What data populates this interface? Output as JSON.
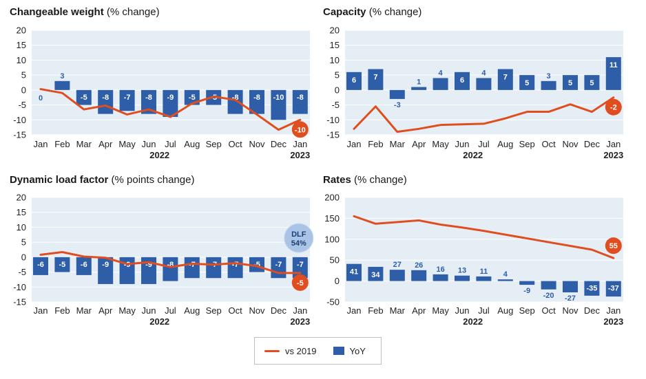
{
  "colors": {
    "line": "#e04e1f",
    "bar": "#2e5ea8",
    "plot_bg": "#e5edf5",
    "grid": "#ffffff",
    "bar_label": "#2e5ea8",
    "bar_label_inside": "#ffffff"
  },
  "legend": {
    "line_label": "vs 2019",
    "bar_label": "YoY"
  },
  "chart_data": [
    {
      "type": "bar+line",
      "title_bold": "Changeable weight",
      "title_rest": " (% change)",
      "categories": [
        "Jan",
        "Feb",
        "Mar",
        "Apr",
        "May",
        "Jun",
        "Jul",
        "Aug",
        "Sep",
        "Oct",
        "Nov",
        "Dec",
        "Jan"
      ],
      "year_labels": [
        "2022",
        "2023"
      ],
      "ylim": [
        -15,
        20
      ],
      "yticks": [
        20,
        15,
        10,
        5,
        0,
        -5,
        -10,
        -15
      ],
      "series": [
        {
          "name": "YoY",
          "kind": "bar",
          "values": [
            0,
            3,
            -5,
            -8,
            -7,
            -8,
            -9,
            -5,
            -5,
            -8,
            -8,
            -10,
            -8
          ]
        },
        {
          "name": "vs 2019",
          "kind": "line",
          "values": [
            0.3,
            -1,
            -6.5,
            -5.2,
            -8.2,
            -6.5,
            -9,
            -4.5,
            -2.2,
            -3.3,
            -8.2,
            -13.3,
            -10
          ],
          "end_label": "-10"
        }
      ]
    },
    {
      "type": "bar+line",
      "title_bold": "Capacity",
      "title_rest": " (% change)",
      "categories": [
        "Jan",
        "Feb",
        "Mar",
        "Apr",
        "May",
        "Jun",
        "Jul",
        "Aug",
        "Sep",
        "Oct",
        "Nov",
        "Dec",
        "Jan"
      ],
      "year_labels": [
        "2022",
        "2023"
      ],
      "ylim": [
        -15,
        20
      ],
      "yticks": [
        20,
        15,
        10,
        5,
        0,
        -5,
        -10,
        -15
      ],
      "series": [
        {
          "name": "YoY",
          "kind": "bar",
          "values": [
            6,
            7,
            -3,
            1,
            4,
            6,
            4,
            7,
            5,
            3,
            5,
            5,
            11
          ]
        },
        {
          "name": "vs 2019",
          "kind": "line",
          "values": [
            -13,
            -5.5,
            -14,
            -13,
            -11.7,
            -11.5,
            -11.3,
            -9.5,
            -7.3,
            -7.3,
            -4.8,
            -7.3,
            -2.5
          ],
          "end_label": "-2"
        }
      ]
    },
    {
      "type": "bar+line",
      "title_bold": "Dynamic load factor",
      "title_rest": " (% points change)",
      "categories": [
        "Jan",
        "Feb",
        "Mar",
        "Apr",
        "May",
        "Jun",
        "Jul",
        "Aug",
        "Sep",
        "Oct",
        "Nov",
        "Dec",
        "Jan"
      ],
      "year_labels": [
        "2022",
        "2023"
      ],
      "ylim": [
        -15,
        20
      ],
      "yticks": [
        20,
        15,
        10,
        5,
        0,
        -5,
        -10,
        -15
      ],
      "series": [
        {
          "name": "YoY",
          "kind": "bar",
          "values": [
            -6,
            -5,
            -6,
            -9,
            -9,
            -9,
            -8,
            -7,
            -7,
            -7,
            -5,
            -7,
            -7
          ]
        },
        {
          "name": "vs 2019",
          "kind": "line",
          "values": [
            0.8,
            1.7,
            0.2,
            -0.2,
            -2.3,
            -1.7,
            -3.3,
            -2.2,
            -2.5,
            -2,
            -3,
            -5.3,
            -5.3
          ],
          "end_label": "-5"
        }
      ],
      "badge": {
        "line1": "DLF",
        "line2": "54%"
      }
    },
    {
      "type": "bar+line",
      "title_bold": "Rates",
      "title_rest": " (% change)",
      "categories": [
        "Jan",
        "Feb",
        "Mar",
        "Apr",
        "May",
        "Jun",
        "Jul",
        "Aug",
        "Sep",
        "Oct",
        "Nov",
        "Dec",
        "Jan"
      ],
      "year_labels": [
        "2022",
        "2023"
      ],
      "ylim": [
        -50,
        200
      ],
      "yticks": [
        200,
        150,
        100,
        50,
        0,
        -50
      ],
      "series": [
        {
          "name": "YoY",
          "kind": "bar",
          "values": [
            41,
            34,
            27,
            26,
            16,
            13,
            11,
            4,
            -9,
            -20,
            -27,
            -35,
            -37
          ]
        },
        {
          "name": "vs 2019",
          "kind": "line",
          "values": [
            155,
            137,
            141,
            145,
            135,
            128,
            120,
            111,
            102,
            93,
            84,
            75,
            55
          ],
          "end_label": "55"
        }
      ]
    }
  ]
}
